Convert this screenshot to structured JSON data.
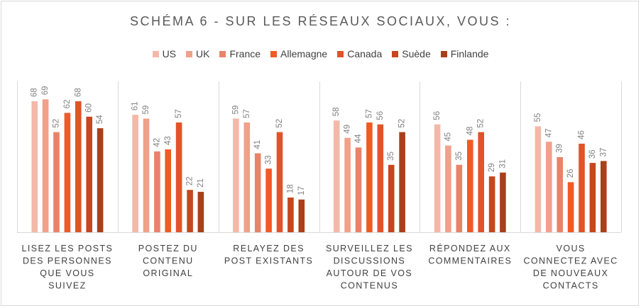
{
  "chart_data": {
    "type": "bar",
    "title": "SCHÉMA 6 - SUR LES RÉSEAUX SOCIAUX, VOUS :",
    "categories": [
      "LISEZ LES POSTS DES PERSONNES QUE VOUS SUIVEZ",
      "POSTEZ DU CONTENU ORIGINAL",
      "RELAYEZ DES POST EXISTANTS",
      "SURVEILLEZ LES DISCUSSIONS AUTOUR DE VOS CONTENUS",
      "RÉPONDEZ AUX COMMENTAIRES",
      "VOUS CONNECTEZ AVEC DE NOUVEAUX CONTACTS"
    ],
    "category_lines": [
      [
        "LISEZ LES POSTS",
        "DES PERSONNES",
        "QUE VOUS",
        "SUIVEZ"
      ],
      [
        "POSTEZ DU",
        "CONTENU",
        "ORIGINAL"
      ],
      [
        "RELAYEZ DES",
        "POST EXISTANTS"
      ],
      [
        "SURVEILLEZ LES",
        "DISCUSSIONS",
        "AUTOUR DE VOS",
        "CONTENUS"
      ],
      [
        "RÉPONDEZ AUX",
        "COMMENTAIRES"
      ],
      [
        "VOUS",
        "CONNECTEZ AVEC",
        "DE NOUVEAUX",
        "CONTACTS"
      ]
    ],
    "series": [
      {
        "name": "US",
        "color": "#f4b8a8",
        "values": [
          68,
          61,
          59,
          58,
          56,
          55
        ]
      },
      {
        "name": "UK",
        "color": "#f1a08a",
        "values": [
          69,
          59,
          57,
          49,
          45,
          47
        ]
      },
      {
        "name": "France",
        "color": "#e8836a",
        "values": [
          52,
          42,
          41,
          44,
          35,
          39
        ]
      },
      {
        "name": "Allemagne",
        "color": "#f05a24",
        "values": [
          62,
          43,
          33,
          57,
          48,
          26
        ]
      },
      {
        "name": "Canada",
        "color": "#e0542a",
        "values": [
          68,
          57,
          52,
          56,
          52,
          46
        ]
      },
      {
        "name": "Suède",
        "color": "#c4471d",
        "values": [
          60,
          22,
          18,
          35,
          29,
          36
        ]
      },
      {
        "name": "Finlande",
        "color": "#a8401a",
        "values": [
          54,
          21,
          17,
          52,
          31,
          37
        ]
      }
    ],
    "ylim": [
      0,
      80
    ],
    "grid": false,
    "legend_position": "top"
  }
}
